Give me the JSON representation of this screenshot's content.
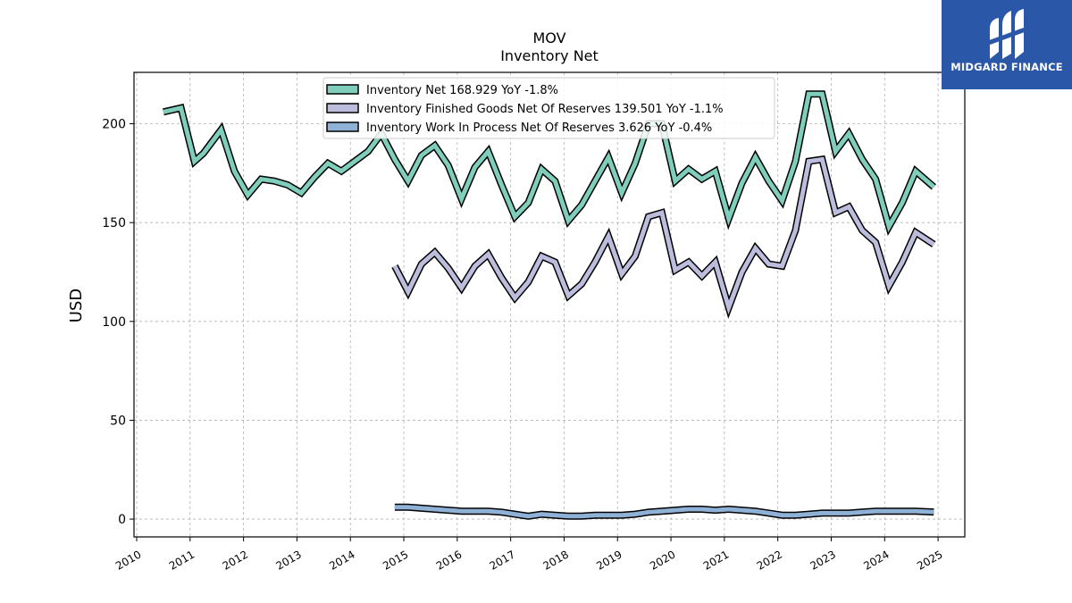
{
  "chart_data": {
    "type": "line",
    "title": "MOV",
    "subtitle": "Inventory Net",
    "ylabel": "USD",
    "xlabel": "",
    "ylim": [
      -9,
      226
    ],
    "xlim": [
      2009.95,
      2025.5
    ],
    "yticks": [
      "0",
      "50",
      "100",
      "150",
      "200"
    ],
    "xticks": [
      "2010",
      "2011",
      "2012",
      "2013",
      "2014",
      "2015",
      "2016",
      "2017",
      "2018",
      "2019",
      "2020",
      "2021",
      "2022",
      "2023",
      "2024",
      "2025"
    ],
    "grid": true,
    "legend_position": "top-center",
    "series": [
      {
        "name": "Inventory Net  168.929 YoY -1.8%",
        "color": "#7fcdbb",
        "x": [
          2010.5,
          2010.83,
          2011.08,
          2011.25,
          2011.58,
          2011.83,
          2012.08,
          2012.33,
          2012.58,
          2012.83,
          2013.08,
          2013.33,
          2013.58,
          2013.83,
          2014.08,
          2014.33,
          2014.58,
          2014.83,
          2015.08,
          2015.33,
          2015.58,
          2015.83,
          2016.08,
          2016.33,
          2016.58,
          2016.83,
          2017.08,
          2017.33,
          2017.58,
          2017.83,
          2018.08,
          2018.33,
          2018.58,
          2018.83,
          2019.08,
          2019.33,
          2019.58,
          2019.83,
          2020.08,
          2020.33,
          2020.58,
          2020.83,
          2021.08,
          2021.33,
          2021.58,
          2021.83,
          2022.08,
          2022.33,
          2022.58,
          2022.83,
          2023.08,
          2023.33,
          2023.58,
          2023.83,
          2024.08,
          2024.33,
          2024.58,
          2024.92
        ],
        "values": [
          206,
          208,
          181,
          185,
          197,
          176,
          164,
          172,
          171,
          169,
          165,
          173,
          180,
          176,
          181,
          186,
          195,
          182,
          171,
          184,
          189,
          179,
          162,
          178,
          186,
          169,
          153,
          160,
          177,
          171,
          151,
          159,
          171,
          183,
          165,
          180,
          200,
          200,
          171,
          177,
          172,
          176,
          152,
          170,
          183,
          171,
          161,
          181,
          215,
          215,
          186,
          195,
          182,
          172,
          148,
          160,
          176,
          168
        ]
      },
      {
        "name": "Inventory Finished Goods Net Of Reserves  139.501 YoY -1.1%",
        "color": "#bcbddc",
        "x": [
          2014.83,
          2015.08,
          2015.33,
          2015.58,
          2015.83,
          2016.08,
          2016.33,
          2016.58,
          2016.83,
          2017.08,
          2017.33,
          2017.58,
          2017.83,
          2018.08,
          2018.33,
          2018.58,
          2018.83,
          2019.08,
          2019.33,
          2019.58,
          2019.83,
          2020.08,
          2020.33,
          2020.58,
          2020.83,
          2021.08,
          2021.33,
          2021.58,
          2021.83,
          2022.08,
          2022.33,
          2022.58,
          2022.83,
          2023.08,
          2023.33,
          2023.58,
          2023.83,
          2024.08,
          2024.33,
          2024.58,
          2024.92
        ],
        "values": [
          128,
          115,
          129,
          135,
          127,
          117,
          128,
          134,
          122,
          112,
          120,
          133,
          130,
          113,
          119,
          130,
          143,
          124,
          133,
          153,
          155,
          126,
          130,
          123,
          130,
          107,
          125,
          137,
          129,
          128,
          146,
          181,
          182,
          155,
          158,
          146,
          140,
          118,
          130,
          145,
          139
        ]
      },
      {
        "name": "Inventory Work In Process Net Of Reserves  3.626 YoY -0.4%",
        "color": "#8fb1d6",
        "x": [
          2014.83,
          2015.08,
          2015.33,
          2015.58,
          2015.83,
          2016.08,
          2016.33,
          2016.58,
          2016.83,
          2017.08,
          2017.33,
          2017.58,
          2017.83,
          2018.08,
          2018.33,
          2018.58,
          2018.83,
          2019.08,
          2019.33,
          2019.58,
          2019.83,
          2020.08,
          2020.33,
          2020.58,
          2020.83,
          2021.08,
          2021.33,
          2021.58,
          2021.83,
          2022.08,
          2022.33,
          2022.58,
          2022.83,
          2023.08,
          2023.33,
          2023.58,
          2023.83,
          2024.08,
          2024.33,
          2024.58,
          2024.92
        ],
        "values": [
          6,
          6,
          5.5,
          5,
          4.5,
          4,
          4,
          4,
          3.5,
          2.5,
          1.5,
          2.5,
          2,
          1.5,
          1.5,
          2,
          2,
          2,
          2.5,
          3.5,
          4,
          4.5,
          5,
          5,
          4.5,
          5,
          4.5,
          4,
          3,
          2,
          2,
          2.5,
          3,
          3,
          3,
          3.5,
          4,
          4,
          4,
          4,
          3.6
        ]
      }
    ]
  },
  "logo": {
    "text": "MIDGARD FINANCE"
  }
}
